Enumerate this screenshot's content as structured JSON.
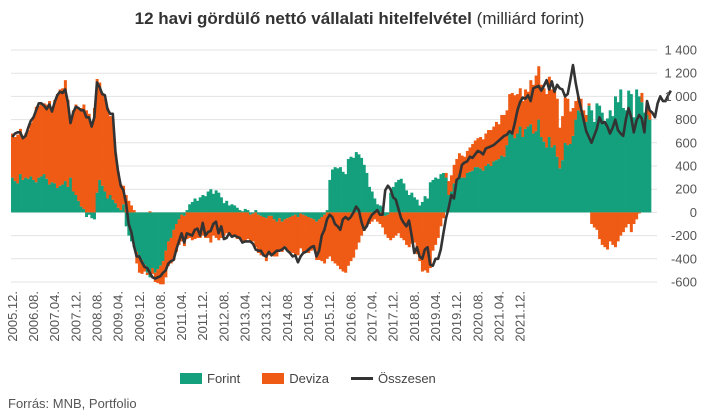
{
  "title": {
    "bold": "12 havi gördülő nettó vállalati hitelfelvétel",
    "unit": "(milliárd forint)"
  },
  "source": "Forrás: MNB, Portfolio",
  "colors": {
    "forint": "#14a07c",
    "deviza": "#ef5a14",
    "osszesen": "#333333",
    "grid": "#e3e3e3",
    "axis_text": "#555555"
  },
  "chart_data": {
    "type": "bar",
    "stacked": true,
    "frequency": "monthly",
    "x_start": "2005.12",
    "x_end": "2022.03",
    "xticks": [
      "2005.12.",
      "2006.08.",
      "2007.04.",
      "2007.12.",
      "2008.08.",
      "2009.04.",
      "2009.12.",
      "2010.08.",
      "2011.04.",
      "2011.12.",
      "2012.08.",
      "2013.04.",
      "2013.12.",
      "2014.08.",
      "2015.04.",
      "2015.12.",
      "2016.08.",
      "2017.04.",
      "2017.12.",
      "2018.08.",
      "2019.04.",
      "2019.12.",
      "2020.08.",
      "2021.04.",
      "2021.12."
    ],
    "ylim": [
      -600,
      1400
    ],
    "yticks": [
      "-600",
      "-400",
      "-200",
      "0",
      "200",
      "400",
      "600",
      "800",
      "1 000",
      "1 200",
      "1 400"
    ],
    "ytick_values": [
      -600,
      -400,
      -200,
      0,
      200,
      400,
      600,
      800,
      1000,
      1200,
      1400
    ],
    "y_axis_position": "right",
    "grid": true,
    "legend_position": "bottom",
    "series": [
      {
        "name": "Forint",
        "type": "bar",
        "values": [
          300,
          270,
          250,
          330,
          280,
          300,
          290,
          310,
          280,
          260,
          300,
          310,
          330,
          290,
          240,
          260,
          250,
          210,
          230,
          240,
          270,
          220,
          300,
          180,
          150,
          100,
          50,
          30,
          -40,
          -20,
          -50,
          -60,
          170,
          280,
          230,
          180,
          120,
          150,
          110,
          80,
          40,
          20,
          70,
          -120,
          -200,
          -250,
          -300,
          -340,
          -380,
          -410,
          -450,
          -520,
          -560,
          -480,
          -520,
          -490,
          -460,
          -420,
          -330,
          -250,
          -220,
          -150,
          -100,
          -60,
          -20,
          -30,
          20,
          70,
          90,
          120,
          100,
          130,
          150,
          140,
          180,
          200,
          160,
          190,
          170,
          130,
          80,
          100,
          60,
          70,
          60,
          40,
          20,
          10,
          30,
          20,
          -20,
          -10,
          20,
          -20,
          -30,
          -40,
          -50,
          -30,
          -30,
          -60,
          -80,
          -50,
          -80,
          -60,
          -50,
          -40,
          -30,
          -20,
          -40,
          -10,
          -20,
          -30,
          -40,
          -50,
          -60,
          -80,
          -60,
          -40,
          -20,
          20,
          280,
          370,
          390,
          380,
          390,
          350,
          330,
          460,
          480,
          470,
          520,
          500,
          470,
          410,
          340,
          220,
          180,
          120,
          70,
          60,
          50,
          -30,
          -20,
          170,
          220,
          260,
          280,
          290,
          250,
          190,
          150,
          170,
          130,
          110,
          60,
          90,
          140,
          120,
          260,
          280,
          300,
          290,
          330,
          340,
          300,
          150,
          180,
          250,
          290,
          330,
          300,
          300,
          340,
          350,
          360,
          390,
          390,
          380,
          360,
          400,
          420,
          400,
          440,
          450,
          460,
          490,
          480,
          580,
          680,
          700,
          640,
          680,
          740,
          650,
          720,
          740,
          760,
          680,
          700,
          800,
          650,
          610,
          560,
          650,
          560,
          580,
          480,
          380,
          450,
          600,
          580,
          590,
          660,
          800,
          880,
          860,
          800,
          780,
          920,
          880,
          780,
          940,
          920,
          860,
          780,
          810,
          880,
          830,
          1000,
          950,
          1060,
          900,
          880,
          1050,
          1020,
          820,
          1060,
          1000,
          950,
          860,
          840,
          800
        ],
        "note": "values in milliárd forint, one per month from 2005.12"
      },
      {
        "name": "Deviza",
        "type": "bar",
        "values": [
          380,
          380,
          420,
          390,
          370,
          380,
          420,
          460,
          540,
          650,
          620,
          620,
          610,
          640,
          720,
          640,
          720,
          810,
          830,
          830,
          870,
          750,
          500,
          700,
          780,
          800,
          850,
          900,
          880,
          850,
          780,
          900,
          980,
          840,
          800,
          800,
          780,
          680,
          700,
          430,
          310,
          220,
          160,
          150,
          100,
          60,
          20,
          -100,
          -140,
          -120,
          -60,
          -20,
          10,
          -50,
          -80,
          -120,
          -160,
          -200,
          -230,
          -210,
          -220,
          -260,
          -240,
          -220,
          -230,
          -260,
          -230,
          -220,
          -240,
          -230,
          -220,
          -220,
          -200,
          -220,
          -220,
          -260,
          -200,
          -220,
          -240,
          -220,
          -200,
          -180,
          -200,
          -200,
          -200,
          -230,
          -220,
          -250,
          -260,
          -230,
          -230,
          -240,
          -300,
          -330,
          -340,
          -340,
          -370,
          -340,
          -330,
          -320,
          -300,
          -280,
          -260,
          -230,
          -280,
          -300,
          -320,
          -350,
          -330,
          -300,
          -320,
          -300,
          -310,
          -280,
          -260,
          -330,
          -350,
          -380,
          -420,
          -400,
          -380,
          -420,
          -440,
          -460,
          -490,
          -510,
          -520,
          -460,
          -420,
          -390,
          -320,
          -260,
          -200,
          -160,
          -120,
          -100,
          -80,
          -60,
          -80,
          -100,
          -130,
          -160,
          -200,
          -240,
          -220,
          -200,
          -180,
          -220,
          -240,
          -280,
          -300,
          -270,
          -260,
          -360,
          -420,
          -510,
          -500,
          -520,
          -480,
          -330,
          -280,
          -220,
          -120,
          -50,
          40,
          120,
          140,
          160,
          170,
          180,
          190,
          180,
          190,
          210,
          230,
          230,
          250,
          270,
          270,
          280,
          290,
          310,
          300,
          330,
          300,
          350,
          360,
          300,
          340,
          330,
          370,
          340,
          330,
          310,
          340,
          300,
          380,
          420,
          480,
          460,
          450,
          460,
          460,
          520,
          500,
          460,
          500,
          350,
          380,
          390,
          400,
          280,
          240,
          160,
          120,
          120,
          80,
          60,
          20,
          -100,
          -130,
          -150,
          -230,
          -280,
          -300,
          -320,
          -250,
          -280,
          -300,
          -250,
          -200,
          -170,
          -130,
          -100,
          -170,
          -100,
          -60,
          -10,
          80,
          0,
          60,
          80,
          60,
          110,
          120
        ],
        "note": "values in milliárd forint, one per month from 2005.12"
      },
      {
        "name": "Összesen",
        "type": "line",
        "values": [
          650,
          680,
          690,
          690,
          640,
          660,
          730,
          790,
          820,
          880,
          940,
          940,
          920,
          890,
          930,
          870,
          950,
          1010,
          1040,
          1030,
          1060,
          950,
          770,
          860,
          910,
          900,
          880,
          880,
          820,
          820,
          740,
          820,
          1120,
          1080,
          1020,
          1010,
          890,
          850,
          850,
          520,
          350,
          230,
          190,
          80,
          -100,
          -170,
          -290,
          -380,
          -380,
          -430,
          -470,
          -480,
          -520,
          -560,
          -570,
          -560,
          -550,
          -520,
          -500,
          -440,
          -420,
          -410,
          -320,
          -250,
          -180,
          -260,
          -180,
          -190,
          -200,
          -150,
          -140,
          -200,
          -90,
          -200,
          -170,
          -160,
          -100,
          -80,
          -180,
          -120,
          -230,
          -220,
          -180,
          -210,
          -200,
          -210,
          -220,
          -260,
          -250,
          -250,
          -250,
          -270,
          -320,
          -330,
          -330,
          -370,
          -380,
          -340,
          -370,
          -350,
          -330,
          -330,
          -320,
          -300,
          -330,
          -350,
          -380,
          -370,
          -430,
          -380,
          -350,
          -340,
          -320,
          -300,
          -290,
          -380,
          -330,
          -200,
          -150,
          -60,
          -20,
          -40,
          -100,
          -120,
          -150,
          -60,
          -40,
          -60,
          -40,
          0,
          50,
          20,
          -80,
          -150,
          -120,
          -60,
          -20,
          0,
          20,
          -20,
          -20,
          190,
          230,
          200,
          130,
          110,
          30,
          -50,
          -90,
          -120,
          -70,
          -200,
          -350,
          -300,
          -380,
          -400,
          -320,
          -300,
          -450,
          -460,
          -400,
          -400,
          -320,
          -180,
          -50,
          40,
          150,
          120,
          280,
          300,
          410,
          430,
          440,
          480,
          470,
          500,
          530,
          520,
          500,
          550,
          560,
          570,
          580,
          600,
          620,
          640,
          660,
          670,
          700,
          680,
          770,
          880,
          950,
          990,
          980,
          1010,
          960,
          1070,
          1080,
          1090,
          1050,
          1090,
          1140,
          1060,
          1130,
          1040,
          1100,
          1070,
          1060,
          1000,
          1020,
          1140,
          1270,
          1120,
          1000,
          900,
          800,
          700,
          650,
          600,
          660,
          720,
          820,
          770,
          780,
          740,
          680,
          730,
          800,
          710,
          680,
          660,
          800,
          900,
          820,
          690,
          790,
          840,
          810,
          690,
          960,
          880,
          860,
          820,
          940,
          1000,
          960,
          960,
          1010,
          1050
        ],
        "note": "values in milliárd forint, one per month from 2005.12"
      }
    ]
  },
  "legend": [
    {
      "label": "Forint",
      "kind": "bar"
    },
    {
      "label": "Deviza",
      "kind": "bar"
    },
    {
      "label": "Összesen",
      "kind": "line"
    }
  ]
}
